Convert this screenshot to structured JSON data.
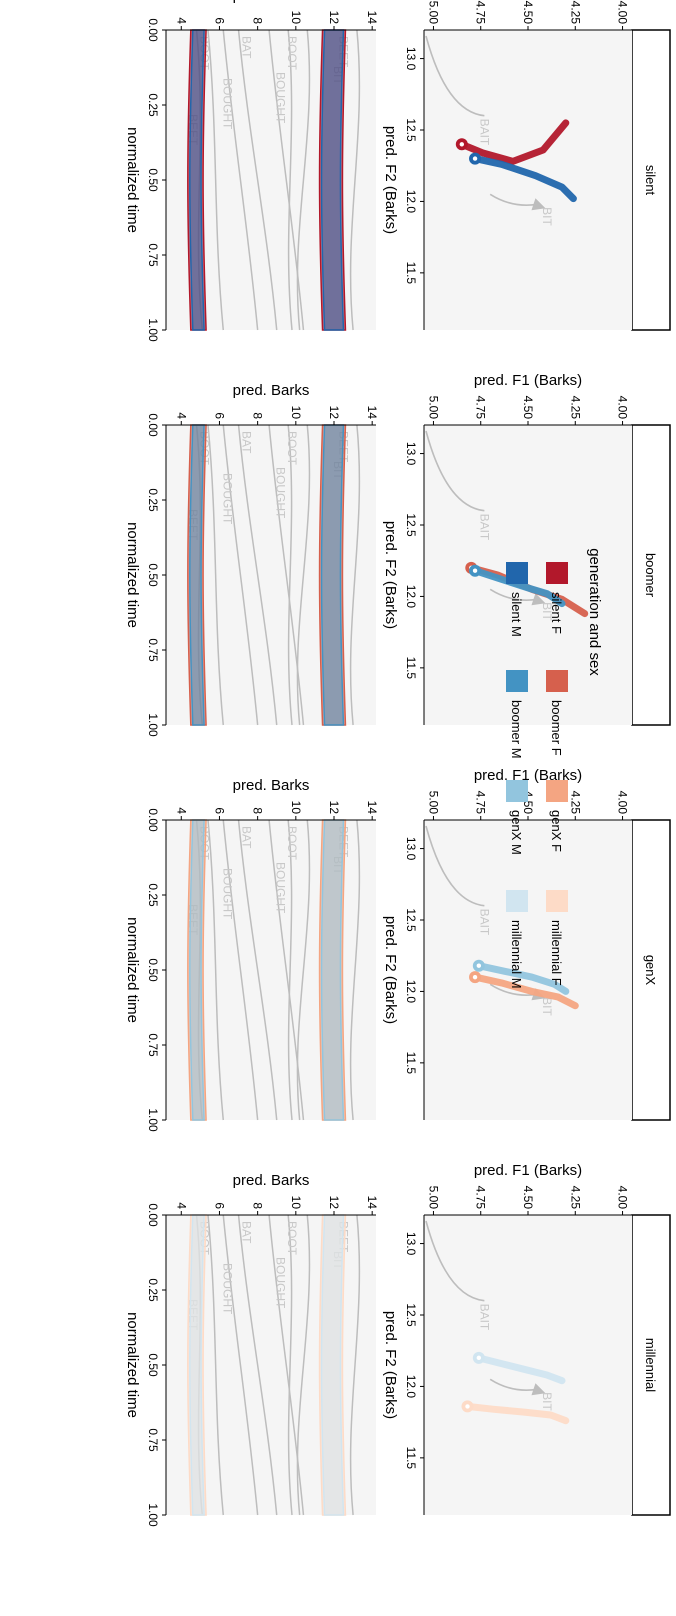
{
  "chart_data": {
    "type": "line",
    "layout": "rotated 90° clockwise; 4 facets (silent, boomer, genX, millennial) x 2 rows (F2/F1 vowel space, formant trajectories over time)",
    "facet_labels": [
      "silent",
      "boomer",
      "genX",
      "millennial"
    ],
    "vowel_space": {
      "xlabel": "pred. F2 (Barks)",
      "ylabel": "pred. F1 (Barks)",
      "xlim": [
        13.2,
        11.1
      ],
      "ylim": [
        5.05,
        3.95
      ],
      "x_ticks": [
        "13.0",
        "12.5",
        "12.0",
        "11.5"
      ],
      "y_ticks": [
        "4.00",
        "4.25",
        "4.50",
        "4.75",
        "5.00"
      ],
      "reference_vowels": [
        {
          "name": "BIT",
          "shown_in": [
            "silent",
            "boomer",
            "genX",
            "millennial"
          ]
        },
        {
          "name": "BAIT",
          "shown_in": [
            "silent",
            "boomer",
            "genX",
            "millennial"
          ]
        }
      ],
      "series": [
        {
          "name": "silent F",
          "facet": "silent",
          "track": [
            [
              12.4,
              4.85
            ],
            [
              12.34,
              4.74
            ],
            [
              12.28,
              4.58
            ],
            [
              12.36,
              4.42
            ],
            [
              12.55,
              4.3
            ]
          ]
        },
        {
          "name": "silent M",
          "facet": "silent",
          "track": [
            [
              12.3,
              4.78
            ],
            [
              12.26,
              4.64
            ],
            [
              12.18,
              4.46
            ],
            [
              12.1,
              4.32
            ],
            [
              12.02,
              4.26
            ]
          ]
        },
        {
          "name": "boomer F",
          "facet": "boomer",
          "track": [
            [
              12.2,
              4.8
            ],
            [
              12.15,
              4.66
            ],
            [
              12.05,
              4.48
            ],
            [
              11.98,
              4.32
            ],
            [
              11.88,
              4.2
            ]
          ]
        },
        {
          "name": "boomer M",
          "facet": "boomer",
          "track": [
            [
              12.18,
              4.78
            ],
            [
              12.12,
              4.64
            ],
            [
              12.06,
              4.5
            ],
            [
              12.02,
              4.4
            ],
            [
              11.95,
              4.32
            ]
          ]
        },
        {
          "name": "genX F",
          "facet": "genX",
          "track": [
            [
              12.1,
              4.78
            ],
            [
              12.06,
              4.64
            ],
            [
              12.0,
              4.48
            ],
            [
              11.96,
              4.34
            ],
            [
              11.9,
              4.25
            ]
          ]
        },
        {
          "name": "genX M",
          "facet": "genX",
          "track": [
            [
              12.18,
              4.76
            ],
            [
              12.14,
              4.62
            ],
            [
              12.1,
              4.48
            ],
            [
              12.05,
              4.36
            ],
            [
              12.0,
              4.3
            ]
          ]
        },
        {
          "name": "millennial F",
          "facet": "millennial",
          "track": [
            [
              11.86,
              4.82
            ],
            [
              11.84,
              4.68
            ],
            [
              11.82,
              4.52
            ],
            [
              11.8,
              4.38
            ],
            [
              11.76,
              4.3
            ]
          ]
        },
        {
          "name": "millennial M",
          "facet": "millennial",
          "track": [
            [
              12.2,
              4.76
            ],
            [
              12.16,
              4.64
            ],
            [
              12.12,
              4.52
            ],
            [
              12.08,
              4.4
            ],
            [
              12.04,
              4.32
            ]
          ]
        }
      ]
    },
    "trajectories": {
      "xlabel": "normalized time",
      "ylabel": "pred. Barks",
      "xlim": [
        0,
        1
      ],
      "ylim": [
        3.2,
        14.2
      ],
      "x_ticks": [
        "0.00",
        "0.25",
        "0.50",
        "0.75",
        "1.00"
      ],
      "y_ticks": [
        "4",
        "6",
        "8",
        "10",
        "12",
        "14"
      ],
      "reference_vowels": [
        "BEET",
        "BIT",
        "BOOT",
        "BOUGHT",
        "BAT",
        "BOOT",
        "BEET",
        "BOUGHT"
      ],
      "target_band": {
        "F2": [
          11.4,
          12.6
        ],
        "F1": [
          4.5,
          5.3
        ]
      }
    },
    "legend": {
      "title": "generation and sex",
      "position": "bottom",
      "entries": [
        {
          "label": "silent F",
          "color": "#b2182b"
        },
        {
          "label": "boomer F",
          "color": "#d6604d"
        },
        {
          "label": "genX F",
          "color": "#f4a582"
        },
        {
          "label": "millennial F",
          "color": "#fddbc7"
        },
        {
          "label": "silent M",
          "color": "#2166ac"
        },
        {
          "label": "boomer M",
          "color": "#4393c3"
        },
        {
          "label": "genX M",
          "color": "#92c5de"
        },
        {
          "label": "millennial M",
          "color": "#d1e5f0"
        }
      ]
    },
    "grid": false,
    "panel_background": "#f5f5f5",
    "reference_color": "#bdbdbd"
  }
}
